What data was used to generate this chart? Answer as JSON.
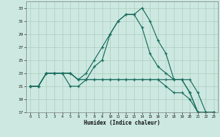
{
  "xlabel": "Humidex (Indice chaleur)",
  "bg_color": "#cce8e0",
  "grid_color": "#aaccbb",
  "line_color": "#1a6e5e",
  "xlim": [
    -0.5,
    23.5
  ],
  "ylim": [
    17,
    34
  ],
  "yticks": [
    17,
    19,
    21,
    23,
    25,
    27,
    29,
    31,
    33
  ],
  "xticks": [
    0,
    1,
    2,
    3,
    4,
    5,
    6,
    7,
    8,
    9,
    10,
    11,
    12,
    13,
    14,
    15,
    16,
    17,
    18,
    19,
    20,
    21,
    22,
    23
  ],
  "series": [
    [
      21,
      21,
      23,
      23,
      23,
      21,
      21,
      22,
      24,
      25,
      29,
      31,
      32,
      32,
      33,
      31,
      28,
      26,
      22,
      22,
      20,
      17,
      17,
      17
    ],
    [
      21,
      21,
      23,
      23,
      23,
      23,
      22,
      23,
      25,
      27,
      29,
      31,
      32,
      32,
      30,
      26,
      24,
      23,
      22,
      22,
      20,
      17,
      17,
      17
    ],
    [
      21,
      21,
      23,
      23,
      23,
      23,
      22,
      22,
      22,
      22,
      22,
      22,
      22,
      22,
      22,
      22,
      22,
      22,
      22,
      22,
      22,
      20,
      17,
      17
    ],
    [
      21,
      21,
      23,
      23,
      23,
      23,
      22,
      22,
      22,
      22,
      22,
      22,
      22,
      22,
      22,
      22,
      22,
      21,
      20,
      20,
      19,
      17,
      17,
      17
    ]
  ]
}
